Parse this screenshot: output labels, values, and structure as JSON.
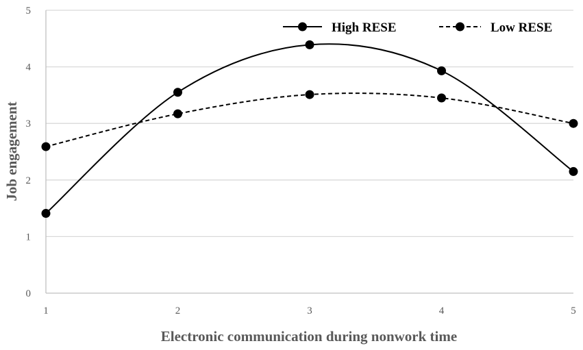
{
  "chart_data": {
    "type": "line",
    "x": [
      1,
      2,
      3,
      4,
      5
    ],
    "xlabel": "Electronic communication during nonwork time",
    "ylabel": "Job engagement",
    "ylim": [
      0,
      5
    ],
    "xlim": [
      1,
      5
    ],
    "yticks": [
      "0",
      "1",
      "2",
      "3",
      "4",
      "5"
    ],
    "xticks": [
      "1",
      "2",
      "3",
      "4",
      "5"
    ],
    "grid": "horizontal",
    "legend_position": "top-right",
    "series": [
      {
        "name": "High RESE",
        "values": [
          1.41,
          3.55,
          4.39,
          3.93,
          2.15
        ],
        "line_style": "solid",
        "color": "#000000",
        "marker": "circle"
      },
      {
        "name": "Low RESE",
        "values": [
          2.59,
          3.17,
          3.51,
          3.45,
          3.0
        ],
        "line_style": "dashed",
        "color": "#000000",
        "marker": "circle"
      }
    ]
  }
}
